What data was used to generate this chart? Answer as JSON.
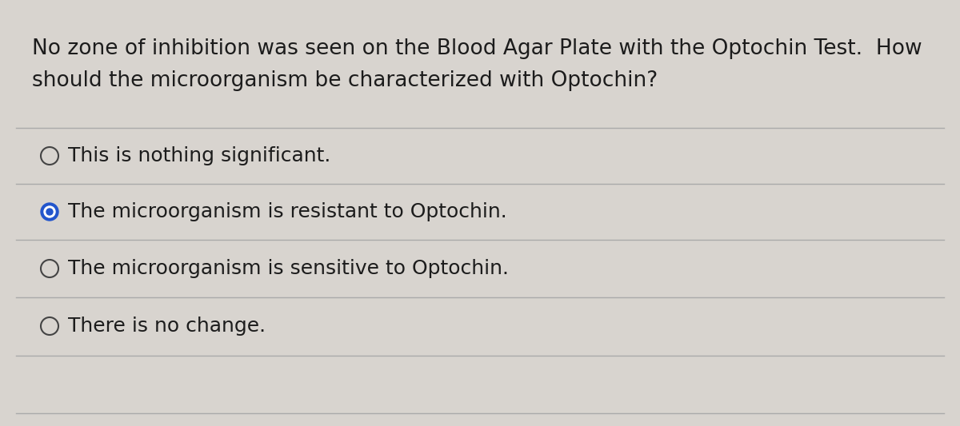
{
  "background_color": "#d8d4cf",
  "question_text_line1": "No zone of inhibition was seen on the Blood Agar Plate with the Optochin Test.  How",
  "question_text_line2": "should the microorganism be characterized with Optochin?",
  "options": [
    {
      "text": "This is nothing significant.",
      "selected": false
    },
    {
      "text": "The microorganism is resistant to Optochin.",
      "selected": true
    },
    {
      "text": "The microorganism is sensitive to Optochin.",
      "selected": false
    },
    {
      "text": "There is no change.",
      "selected": false
    }
  ],
  "text_color": "#1c1c1c",
  "selected_outer_color": "#2255cc",
  "selected_inner_color": "#2255cc",
  "unselected_color": "#444444",
  "line_color": "#aaaaaa",
  "font_size_question": 19,
  "font_size_option": 18
}
